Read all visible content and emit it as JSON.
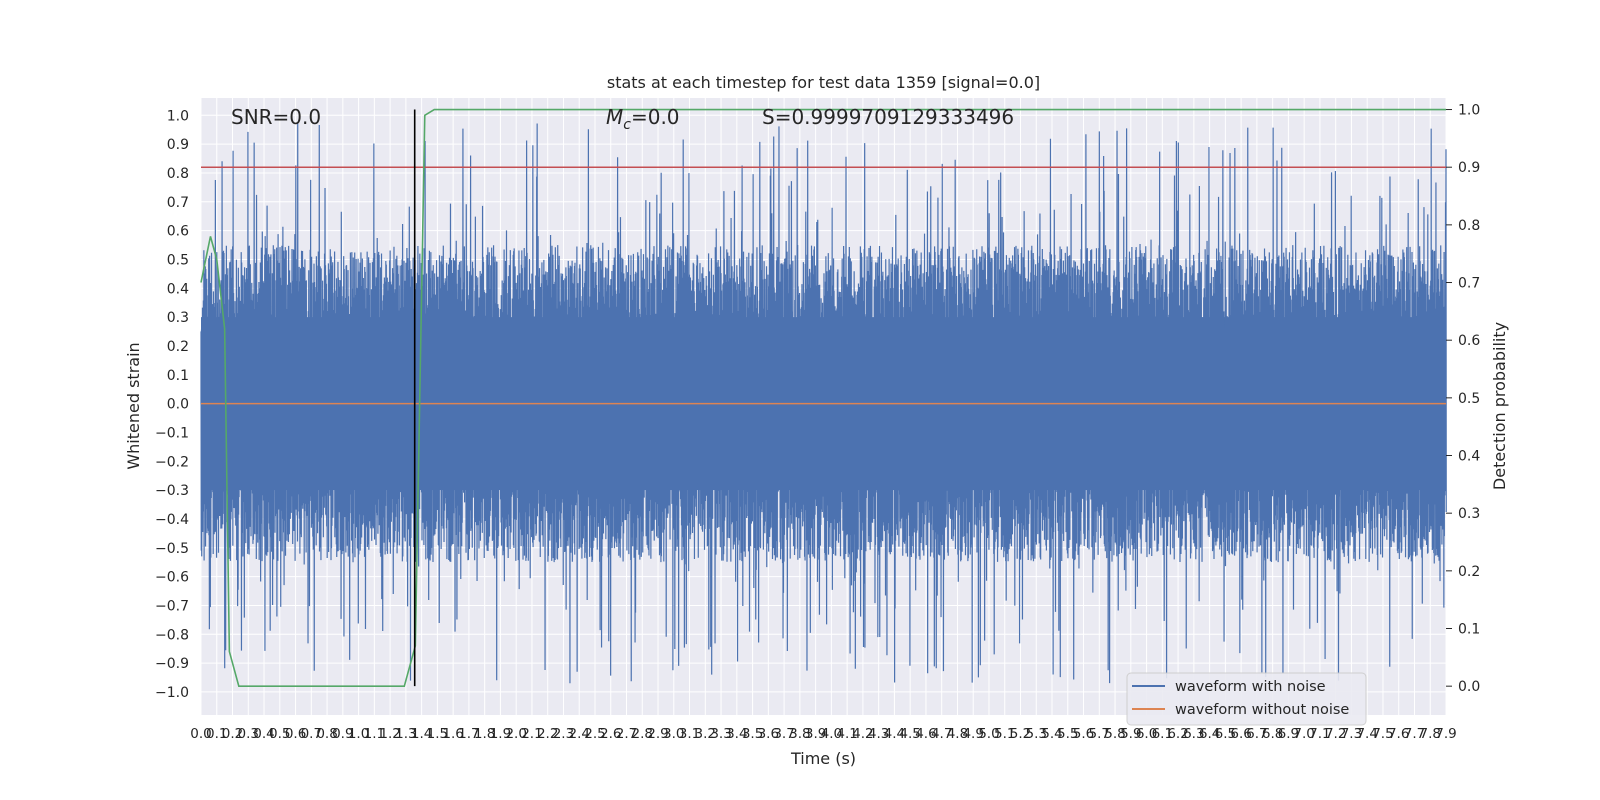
{
  "chart_data": {
    "type": "line",
    "title": "stats at each timestep for test data 1359 [signal=0.0]",
    "xlabel": "Time (s)",
    "ylabel": "Whitened strain",
    "ylabel_right": "Detection probability",
    "xlim": [
      0.0,
      7.9
    ],
    "ylim": [
      -1.08,
      1.06
    ],
    "ylim_right": [
      -0.05,
      1.02
    ],
    "x_ticks": [
      0.0,
      0.1,
      0.2,
      0.3,
      0.4,
      0.5,
      0.6,
      0.7,
      0.8,
      0.9,
      1.0,
      1.1,
      1.2,
      1.3,
      1.4,
      1.5,
      1.6,
      1.7,
      1.8,
      1.9,
      2.0,
      2.1,
      2.2,
      2.3,
      2.4,
      2.5,
      2.6,
      2.7,
      2.8,
      2.9,
      3.0,
      3.1,
      3.2,
      3.3,
      3.4,
      3.5,
      3.6,
      3.7,
      3.8,
      3.9,
      4.0,
      4.1,
      4.2,
      4.3,
      4.4,
      4.5,
      4.6,
      4.7,
      4.8,
      4.9,
      5.0,
      5.1,
      5.2,
      5.3,
      5.4,
      5.5,
      5.6,
      5.7,
      5.8,
      5.9,
      6.0,
      6.1,
      6.2,
      6.3,
      6.4,
      6.5,
      6.6,
      6.7,
      6.8,
      6.9,
      7.0,
      7.1,
      7.2,
      7.3,
      7.4,
      7.5,
      7.6,
      7.7,
      7.8,
      7.9
    ],
    "y_ticks": [
      -1.0,
      -0.9,
      -0.8,
      -0.7,
      -0.6,
      -0.5,
      -0.4,
      -0.3,
      -0.2,
      -0.1,
      0.0,
      0.1,
      0.2,
      0.3,
      0.4,
      0.5,
      0.6,
      0.7,
      0.8,
      0.9,
      1.0
    ],
    "y_ticks_right": [
      0.0,
      0.1,
      0.2,
      0.3,
      0.4,
      0.5,
      0.6,
      0.7,
      0.8,
      0.9,
      1.0
    ],
    "annotations": {
      "snr": "SNR=0.0",
      "mc": "=0.0",
      "s": "S=0.9999709129333496"
    },
    "threshold": {
      "axis": "right",
      "y": 0.9,
      "color": "#c44e52"
    },
    "vertical_marker": {
      "x": 1.356,
      "color": "#000000"
    },
    "series": [
      {
        "name": "waveform with noise",
        "axis": "left",
        "color": "#4c72b0",
        "style": "dense-noise",
        "amplitude_envelope": {
          "upper_typical": 0.55,
          "lower_typical": -0.55,
          "max": 0.98,
          "min": -0.97
        }
      },
      {
        "name": "waveform without noise",
        "axis": "left",
        "color": "#dd8452",
        "x": [
          0.0,
          7.9
        ],
        "y": [
          0.0,
          0.0
        ]
      },
      {
        "axis": "right",
        "color": "#55a868",
        "x": [
          0.0,
          0.06,
          0.1,
          0.15,
          0.18,
          0.24,
          0.3,
          0.6,
          1.0,
          1.29,
          1.36,
          1.42,
          1.48,
          1.55,
          2.0,
          4.0,
          7.9
        ],
        "y": [
          0.7,
          0.78,
          0.74,
          0.62,
          0.06,
          0.0,
          0.0,
          0.0,
          0.0,
          0.0,
          0.07,
          0.99,
          1.0,
          1.0,
          1.0,
          1.0,
          1.0
        ]
      }
    ],
    "legend": {
      "position": "lower-right",
      "entries": [
        "waveform with noise",
        "waveform without noise"
      ]
    },
    "grid": true
  }
}
